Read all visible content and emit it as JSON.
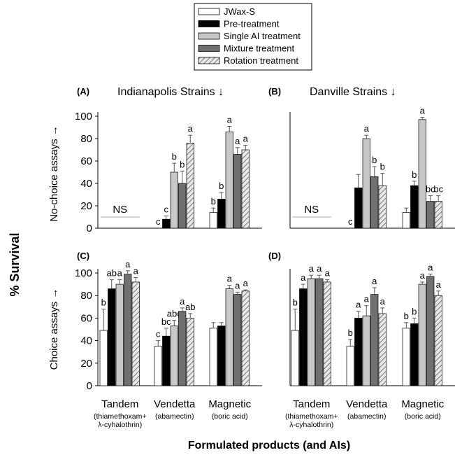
{
  "legend": [
    "JWax-S",
    "Pre-treatment",
    "Single AI treatment",
    "Mixture treatment",
    "Rotation treatment"
  ],
  "series_colors": [
    "#ffffff",
    "#000000",
    "#c8c8c8",
    "#707070",
    "hatch"
  ],
  "y_label_main": "% Survival",
  "x_label_main": "Formulated products (and AIs)",
  "row_labels": [
    "No-choice assays →",
    "Choice assays →"
  ],
  "column_titles": [
    "Indianapolis Strains ↓",
    "Danville Strains ↓"
  ],
  "chart_data": [
    {
      "panel": "(A)",
      "type": "bar",
      "categories": [
        "Tandem",
        "Vendetta",
        "Magnetic"
      ],
      "category_subtitles": [
        [
          "(thiamethoxam+",
          "λ-cyhalothrin)"
        ],
        [
          "(abamectin)"
        ],
        [
          "(boric acid)"
        ]
      ],
      "series": [
        {
          "name": "JWax-S",
          "values": [
            null,
            0,
            14
          ],
          "errors": [
            null,
            0,
            4
          ]
        },
        {
          "name": "Pre-treatment",
          "values": [
            null,
            8,
            26
          ],
          "errors": [
            null,
            3,
            6
          ]
        },
        {
          "name": "Single AI treatment",
          "values": [
            null,
            50,
            86
          ],
          "errors": [
            null,
            8,
            5
          ]
        },
        {
          "name": "Mixture treatment",
          "values": [
            null,
            40,
            66
          ],
          "errors": [
            null,
            11,
            6
          ]
        },
        {
          "name": "Rotation treatment",
          "values": [
            null,
            76,
            70
          ],
          "errors": [
            null,
            7,
            4
          ]
        }
      ],
      "letters": [
        [
          "",
          "",
          "",
          "",
          ""
        ],
        [
          "c",
          "c",
          "b",
          "b",
          "a"
        ],
        [
          "b",
          "b",
          "a",
          "a",
          "a"
        ]
      ],
      "annotation": {
        "text": "NS",
        "category": "Tandem"
      },
      "ylim": [
        0,
        100
      ],
      "yticks": [
        0,
        20,
        40,
        60,
        80,
        100
      ]
    },
    {
      "panel": "(B)",
      "type": "bar",
      "categories": [
        "Tandem",
        "Vendetta",
        "Magnetic"
      ],
      "category_subtitles": [
        [
          "(thiamethoxam+",
          "λ-cyhalothrin)"
        ],
        [
          "(abamectin)"
        ],
        [
          "(boric acid)"
        ]
      ],
      "series": [
        {
          "name": "JWax-S",
          "values": [
            null,
            0,
            14
          ],
          "errors": [
            null,
            0,
            4
          ]
        },
        {
          "name": "Pre-treatment",
          "values": [
            null,
            36,
            38
          ],
          "errors": [
            null,
            12,
            4
          ]
        },
        {
          "name": "Single AI treatment",
          "values": [
            null,
            80,
            97
          ],
          "errors": [
            null,
            3,
            2
          ]
        },
        {
          "name": "Mixture treatment",
          "values": [
            null,
            46,
            24
          ],
          "errors": [
            null,
            9,
            5
          ]
        },
        {
          "name": "Rotation treatment",
          "values": [
            null,
            38,
            24
          ],
          "errors": [
            null,
            11,
            5
          ]
        }
      ],
      "letters": [
        [
          "",
          "",
          "",
          "",
          ""
        ],
        [
          "c",
          "",
          "a",
          "b",
          "b"
        ],
        [
          "",
          "b",
          "a",
          "bc",
          "bc"
        ]
      ],
      "annotation": {
        "text": "NS",
        "category": "Tandem"
      },
      "ylim": [
        0,
        100
      ],
      "yticks": [
        0,
        20,
        40,
        60,
        80,
        100
      ]
    },
    {
      "panel": "(C)",
      "type": "bar",
      "categories": [
        "Tandem",
        "Vendetta",
        "Magnetic"
      ],
      "category_subtitles": [
        [
          "(thiamethoxam+",
          "λ-cyhalothrin)"
        ],
        [
          "(abamectin)"
        ],
        [
          "(boric acid)"
        ]
      ],
      "series": [
        {
          "name": "JWax-S",
          "values": [
            49,
            35,
            51
          ],
          "errors": [
            19,
            5,
            5
          ]
        },
        {
          "name": "Pre-treatment",
          "values": [
            86,
            44,
            53
          ],
          "errors": [
            8,
            7,
            3
          ]
        },
        {
          "name": "Single AI treatment",
          "values": [
            90,
            53,
            86
          ],
          "errors": [
            4,
            5,
            3
          ]
        },
        {
          "name": "Mixture treatment",
          "values": [
            99,
            66,
            81
          ],
          "errors": [
            3,
            3,
            2
          ]
        },
        {
          "name": "Rotation treatment",
          "values": [
            92,
            60,
            84
          ],
          "errors": [
            4,
            4,
            1
          ]
        }
      ],
      "letters": [
        [
          "b",
          "ab",
          "a",
          "a",
          "a"
        ],
        [
          "c",
          "bc",
          "abc",
          "a",
          "ab"
        ],
        [
          "",
          "",
          "a",
          "a",
          "a"
        ]
      ],
      "ylim": [
        0,
        100
      ],
      "yticks": [
        0,
        20,
        40,
        60,
        80,
        100
      ]
    },
    {
      "panel": "(D)",
      "type": "bar",
      "categories": [
        "Tandem",
        "Vendetta",
        "Magnetic"
      ],
      "category_subtitles": [
        [
          "(thiamethoxam+",
          "λ-cyhalothrin)"
        ],
        [
          "(abamectin)"
        ],
        [
          "(boric acid)"
        ]
      ],
      "series": [
        {
          "name": "JWax-S",
          "values": [
            49,
            35,
            51
          ],
          "errors": [
            19,
            6,
            5
          ]
        },
        {
          "name": "Pre-treatment",
          "values": [
            86,
            60,
            55
          ],
          "errors": [
            4,
            6,
            5
          ]
        },
        {
          "name": "Single AI treatment",
          "values": [
            95,
            62,
            90
          ],
          "errors": [
            3,
            9,
            2
          ]
        },
        {
          "name": "Mixture treatment",
          "values": [
            95,
            81,
            97
          ],
          "errors": [
            3,
            6,
            2
          ]
        },
        {
          "name": "Rotation treatment",
          "values": [
            92,
            64,
            80
          ],
          "errors": [
            2,
            5,
            4
          ]
        }
      ],
      "letters": [
        [
          "b",
          "a",
          "a",
          "a",
          "a"
        ],
        [
          "b",
          "a",
          "a",
          "a",
          "a"
        ],
        [
          "b",
          "b",
          "a",
          "a",
          "a"
        ]
      ],
      "ylim": [
        0,
        100
      ],
      "yticks": [
        0,
        20,
        40,
        60,
        80,
        100
      ]
    }
  ]
}
